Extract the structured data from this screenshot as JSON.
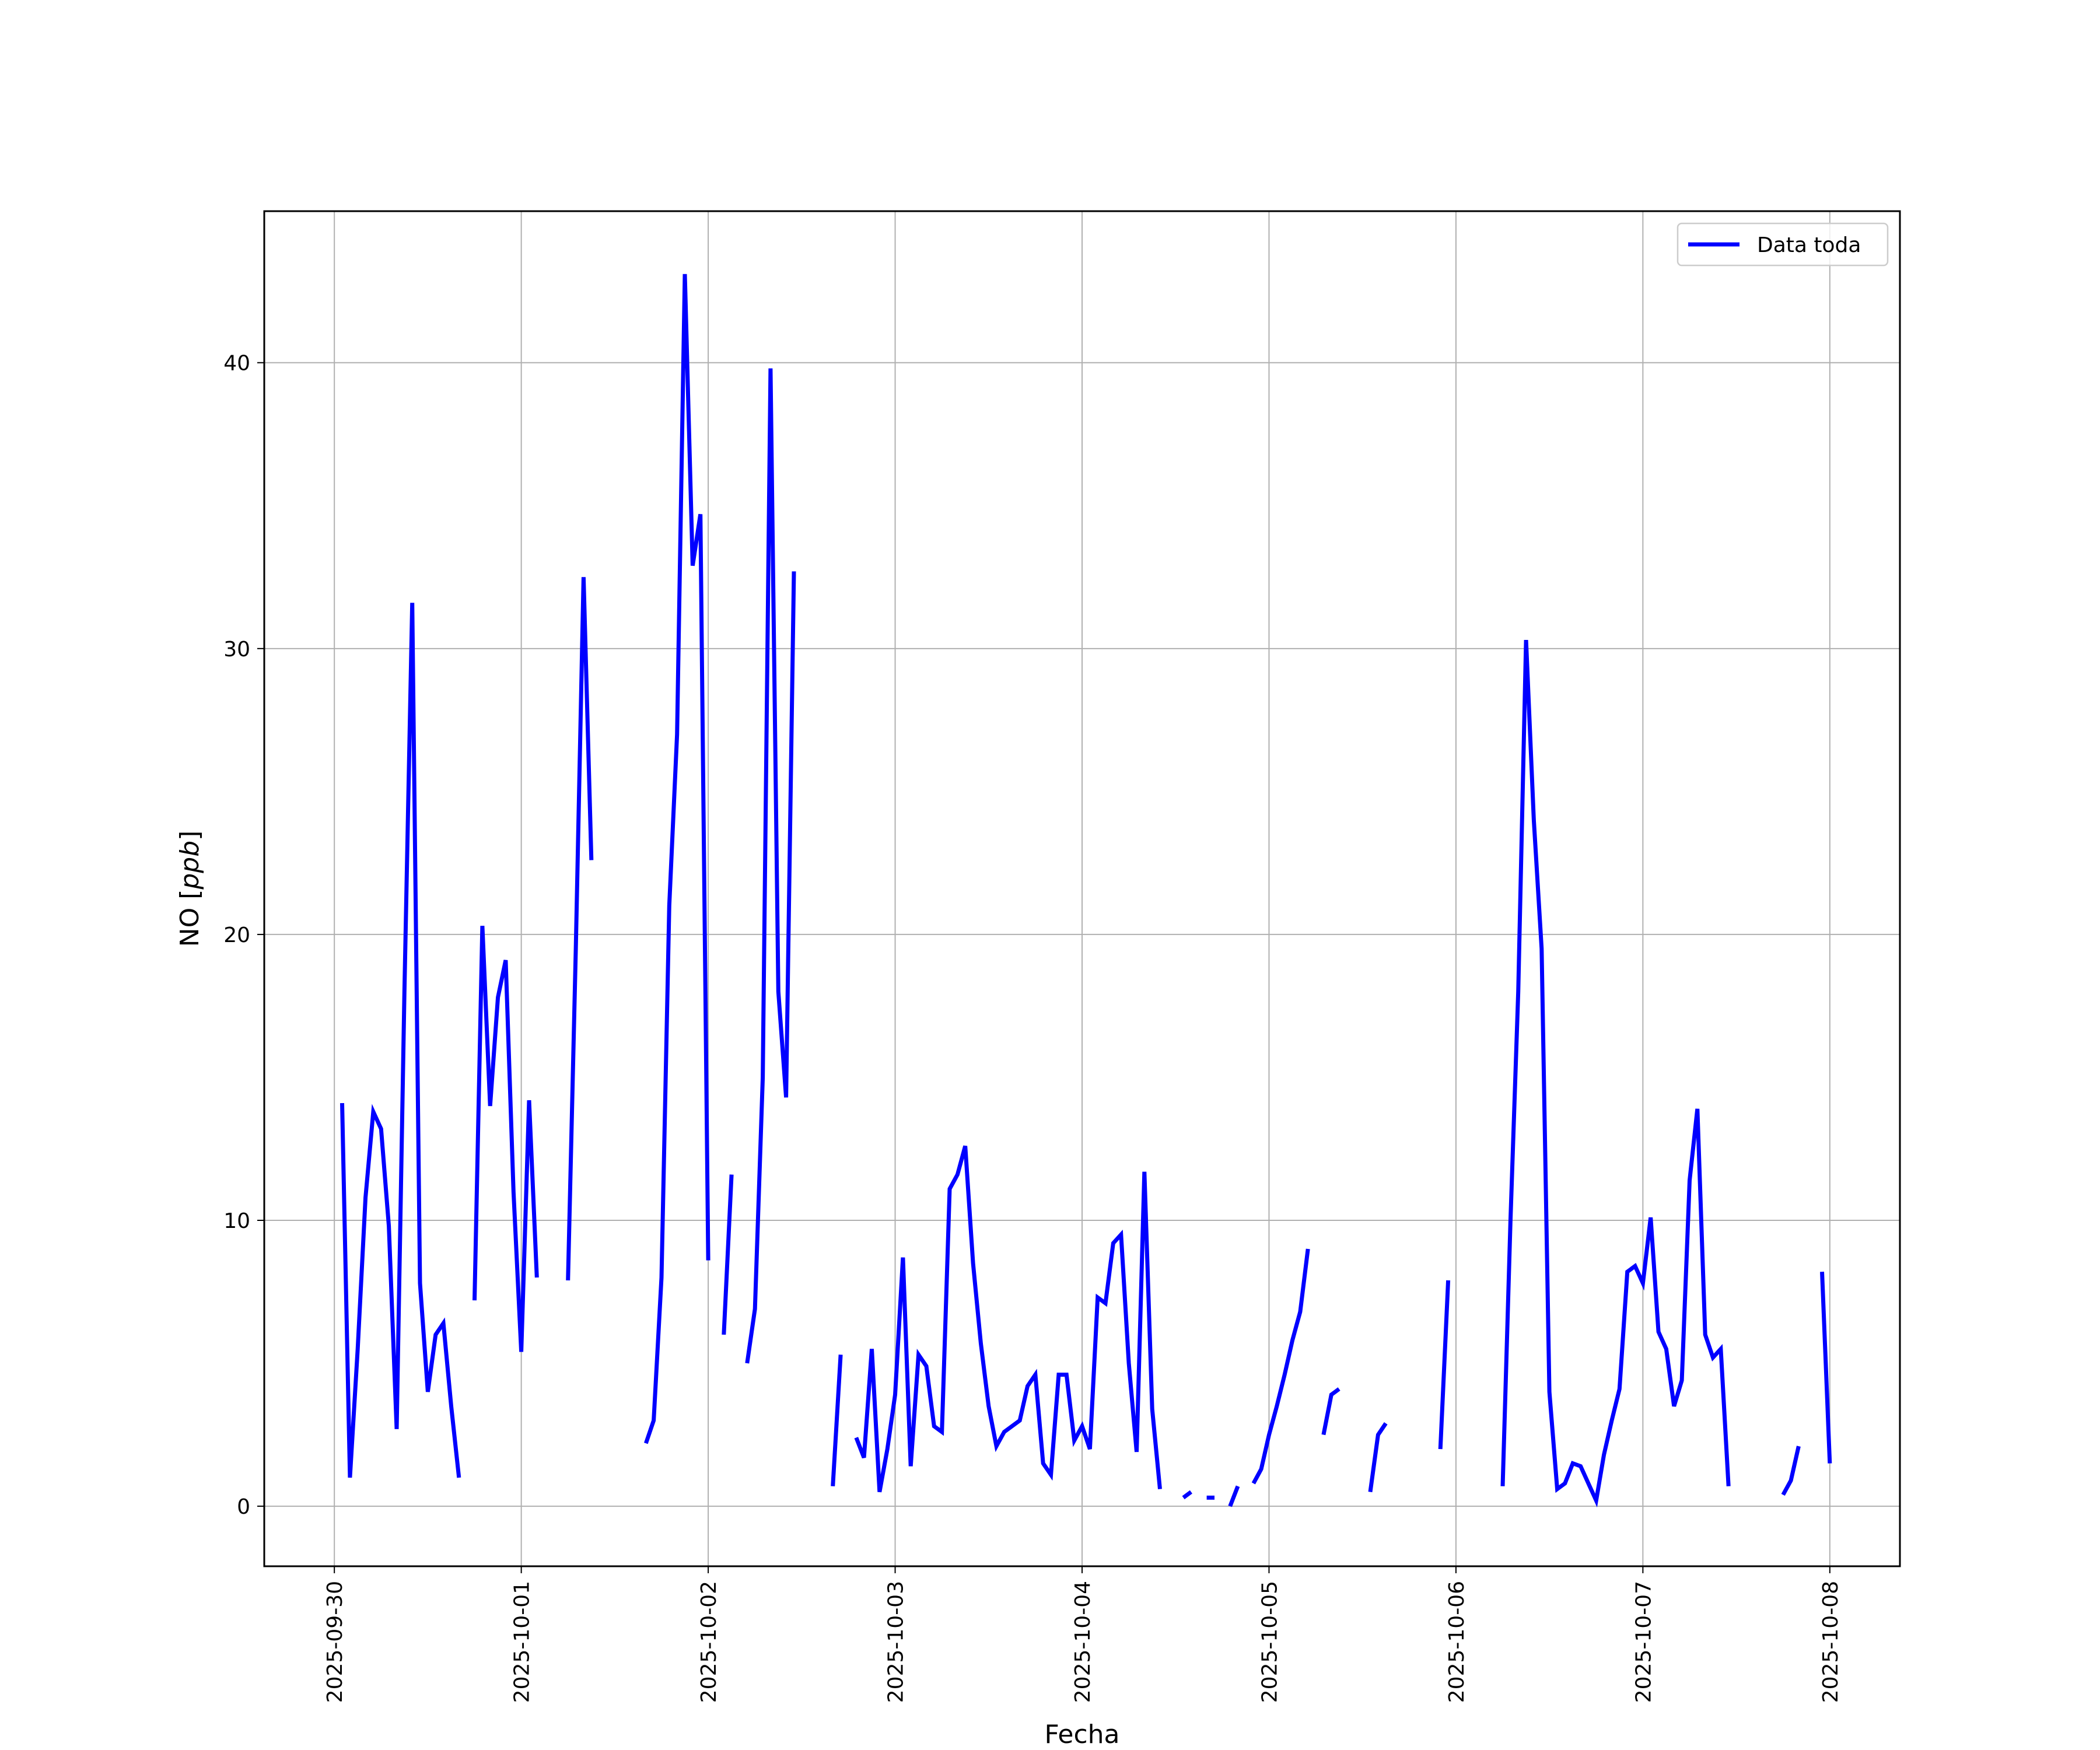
{
  "chart_data": {
    "type": "line",
    "title": "",
    "xlabel": "Fecha",
    "ylabel": "NO [ppb]",
    "ylabel_parts": {
      "plain": "NO [",
      "italic": "ppb",
      "close": "]"
    },
    "xlim": [
      "2025-09-29T15:00",
      "2025-10-08T09:00"
    ],
    "ylim": [
      -2.1,
      45.3
    ],
    "x_ticks": [
      "2025-09-30",
      "2025-10-01",
      "2025-10-02",
      "2025-10-03",
      "2025-10-04",
      "2025-10-05",
      "2025-10-06",
      "2025-10-07",
      "2025-10-08"
    ],
    "y_ticks": [
      0,
      10,
      20,
      30,
      40
    ],
    "y_tick_labels": [
      "0",
      "10",
      "20",
      "30",
      "40"
    ],
    "grid": true,
    "legend_position": "top-right",
    "series": [
      {
        "name": "Data toda",
        "color": "#0000ff",
        "segments": [
          [
            [
              "2025-09-30T01:00",
              14.1
            ],
            [
              "2025-09-30T02:00",
              1.0
            ],
            [
              "2025-09-30T03:00",
              5.5
            ],
            [
              "2025-09-30T04:00",
              10.8
            ],
            [
              "2025-09-30T05:00",
              13.8
            ],
            [
              "2025-09-30T06:00",
              13.2
            ],
            [
              "2025-09-30T07:00",
              9.8
            ],
            [
              "2025-09-30T08:00",
              2.7
            ],
            [
              "2025-09-30T09:00",
              18.0
            ],
            [
              "2025-09-30T10:00",
              31.6
            ],
            [
              "2025-09-30T11:00",
              7.8
            ],
            [
              "2025-09-30T12:00",
              4.0
            ],
            [
              "2025-09-30T13:00",
              6.0
            ],
            [
              "2025-09-30T14:00",
              6.4
            ],
            [
              "2025-09-30T15:00",
              3.5
            ],
            [
              "2025-09-30T16:00",
              1.0
            ]
          ],
          [
            [
              "2025-09-30T18:00",
              7.2
            ],
            [
              "2025-09-30T19:00",
              20.3
            ],
            [
              "2025-09-30T20:00",
              14.0
            ],
            [
              "2025-09-30T21:00",
              17.8
            ],
            [
              "2025-09-30T22:00",
              19.1
            ],
            [
              "2025-09-30T23:00",
              11.0
            ],
            [
              "2025-10-01T00:00",
              5.4
            ],
            [
              "2025-10-01T01:00",
              14.2
            ],
            [
              "2025-10-01T02:00",
              8.0
            ]
          ],
          [
            [
              "2025-10-01T06:00",
              7.9
            ],
            [
              "2025-10-01T07:00",
              19.5
            ],
            [
              "2025-10-01T08:00",
              32.5
            ],
            [
              "2025-10-01T09:00",
              22.6
            ]
          ],
          [
            [
              "2025-10-01T16:00",
              2.2
            ],
            [
              "2025-10-01T17:00",
              3.0
            ],
            [
              "2025-10-01T18:00",
              8.0
            ],
            [
              "2025-10-01T19:00",
              21.0
            ],
            [
              "2025-10-01T20:00",
              27.0
            ],
            [
              "2025-10-01T21:00",
              43.1
            ],
            [
              "2025-10-01T22:00",
              32.9
            ],
            [
              "2025-10-01T23:00",
              34.7
            ],
            [
              "2025-10-02T00:00",
              8.6
            ]
          ],
          [
            [
              "2025-10-02T02:00",
              6.0
            ],
            [
              "2025-10-02T03:00",
              11.6
            ]
          ],
          [
            [
              "2025-10-02T05:00",
              5.0
            ],
            [
              "2025-10-02T06:00",
              6.9
            ],
            [
              "2025-10-02T07:00",
              15.0
            ],
            [
              "2025-10-02T08:00",
              39.8
            ],
            [
              "2025-10-02T09:00",
              18.0
            ],
            [
              "2025-10-02T10:00",
              14.3
            ],
            [
              "2025-10-02T11:00",
              32.7
            ]
          ],
          [
            [
              "2025-10-02T16:00",
              0.7
            ],
            [
              "2025-10-02T17:00",
              5.3
            ]
          ],
          [
            [
              "2025-10-02T19:00",
              2.4
            ],
            [
              "2025-10-02T20:00",
              1.7
            ],
            [
              "2025-10-02T21:00",
              5.5
            ],
            [
              "2025-10-02T22:00",
              0.5
            ],
            [
              "2025-10-02T23:00",
              2.0
            ],
            [
              "2025-10-03T00:00",
              3.9
            ],
            [
              "2025-10-03T01:00",
              8.7
            ],
            [
              "2025-10-03T02:00",
              1.4
            ],
            [
              "2025-10-03T03:00",
              5.3
            ],
            [
              "2025-10-03T04:00",
              4.9
            ],
            [
              "2025-10-03T05:00",
              2.8
            ],
            [
              "2025-10-03T06:00",
              2.6
            ],
            [
              "2025-10-03T07:00",
              11.1
            ],
            [
              "2025-10-03T08:00",
              11.6
            ],
            [
              "2025-10-03T09:00",
              12.6
            ],
            [
              "2025-10-03T10:00",
              8.5
            ],
            [
              "2025-10-03T11:00",
              5.7
            ],
            [
              "2025-10-03T12:00",
              3.5
            ],
            [
              "2025-10-03T13:00",
              2.1
            ],
            [
              "2025-10-03T14:00",
              2.6
            ],
            [
              "2025-10-03T15:00",
              2.8
            ],
            [
              "2025-10-03T16:00",
              3.0
            ],
            [
              "2025-10-03T17:00",
              4.2
            ],
            [
              "2025-10-03T18:00",
              4.6
            ],
            [
              "2025-10-03T19:00",
              1.5
            ],
            [
              "2025-10-03T20:00",
              1.1
            ],
            [
              "2025-10-03T21:00",
              4.6
            ],
            [
              "2025-10-03T22:00",
              4.6
            ],
            [
              "2025-10-03T23:00",
              2.3
            ],
            [
              "2025-10-04T00:00",
              2.8
            ],
            [
              "2025-10-04T01:00",
              2.0
            ],
            [
              "2025-10-04T02:00",
              7.3
            ],
            [
              "2025-10-04T03:00",
              7.1
            ],
            [
              "2025-10-04T04:00",
              9.2
            ],
            [
              "2025-10-04T05:00",
              9.5
            ],
            [
              "2025-10-04T06:00",
              5.0
            ],
            [
              "2025-10-04T07:00",
              1.9
            ],
            [
              "2025-10-04T08:00",
              11.7
            ],
            [
              "2025-10-04T09:00",
              3.4
            ],
            [
              "2025-10-04T10:00",
              0.6
            ]
          ],
          [
            [
              "2025-10-04T13:00",
              0.3
            ],
            [
              "2025-10-04T14:00",
              0.5
            ]
          ],
          [
            [
              "2025-10-04T16:00",
              0.3
            ],
            [
              "2025-10-04T17:00",
              0.3
            ]
          ],
          [
            [
              "2025-10-04T19:00",
              0.0
            ],
            [
              "2025-10-04T20:00",
              0.7
            ]
          ],
          [
            [
              "2025-10-04T22:00",
              0.8
            ],
            [
              "2025-10-04T23:00",
              1.3
            ],
            [
              "2025-10-05T00:00",
              2.5
            ],
            [
              "2025-10-05T01:00",
              3.5
            ],
            [
              "2025-10-05T02:00",
              4.6
            ],
            [
              "2025-10-05T03:00",
              5.8
            ],
            [
              "2025-10-05T04:00",
              6.8
            ],
            [
              "2025-10-05T05:00",
              9.0
            ]
          ],
          [
            [
              "2025-10-05T07:00",
              2.5
            ],
            [
              "2025-10-05T08:00",
              3.9
            ],
            [
              "2025-10-05T09:00",
              4.1
            ]
          ],
          [
            [
              "2025-10-05T13:00",
              0.5
            ],
            [
              "2025-10-05T14:00",
              2.5
            ],
            [
              "2025-10-05T15:00",
              2.9
            ]
          ],
          [
            [
              "2025-10-05T22:00",
              2.0
            ],
            [
              "2025-10-05T23:00",
              7.9
            ]
          ],
          [
            [
              "2025-10-06T06:00",
              0.7
            ],
            [
              "2025-10-06T07:00",
              10.0
            ],
            [
              "2025-10-06T08:00",
              18.0
            ],
            [
              "2025-10-06T09:00",
              30.3
            ],
            [
              "2025-10-06T10:00",
              24.0
            ],
            [
              "2025-10-06T11:00",
              19.5
            ],
            [
              "2025-10-06T12:00",
              4.0
            ],
            [
              "2025-10-06T13:00",
              0.6
            ],
            [
              "2025-10-06T14:00",
              0.8
            ],
            [
              "2025-10-06T15:00",
              1.5
            ],
            [
              "2025-10-06T16:00",
              1.4
            ],
            [
              "2025-10-06T17:00",
              0.8
            ],
            [
              "2025-10-06T18:00",
              0.2
            ],
            [
              "2025-10-06T19:00",
              1.8
            ],
            [
              "2025-10-06T20:00",
              3.0
            ],
            [
              "2025-10-06T21:00",
              4.1
            ],
            [
              "2025-10-06T22:00",
              8.2
            ],
            [
              "2025-10-06T23:00",
              8.4
            ],
            [
              "2025-10-07T00:00",
              7.8
            ],
            [
              "2025-10-07T01:00",
              10.1
            ],
            [
              "2025-10-07T02:00",
              6.1
            ],
            [
              "2025-10-07T03:00",
              5.5
            ],
            [
              "2025-10-07T04:00",
              3.5
            ],
            [
              "2025-10-07T05:00",
              4.4
            ],
            [
              "2025-10-07T06:00",
              11.4
            ],
            [
              "2025-10-07T07:00",
              13.9
            ],
            [
              "2025-10-07T08:00",
              6.0
            ],
            [
              "2025-10-07T09:00",
              5.2
            ],
            [
              "2025-10-07T10:00",
              5.5
            ],
            [
              "2025-10-07T11:00",
              0.7
            ]
          ],
          [
            [
              "2025-10-07T18:00",
              0.4
            ],
            [
              "2025-10-07T19:00",
              0.9
            ],
            [
              "2025-10-07T20:00",
              2.1
            ]
          ],
          [
            [
              "2025-10-07T23:00",
              8.2
            ],
            [
              "2025-10-08T00:00",
              1.5
            ]
          ]
        ]
      }
    ]
  }
}
